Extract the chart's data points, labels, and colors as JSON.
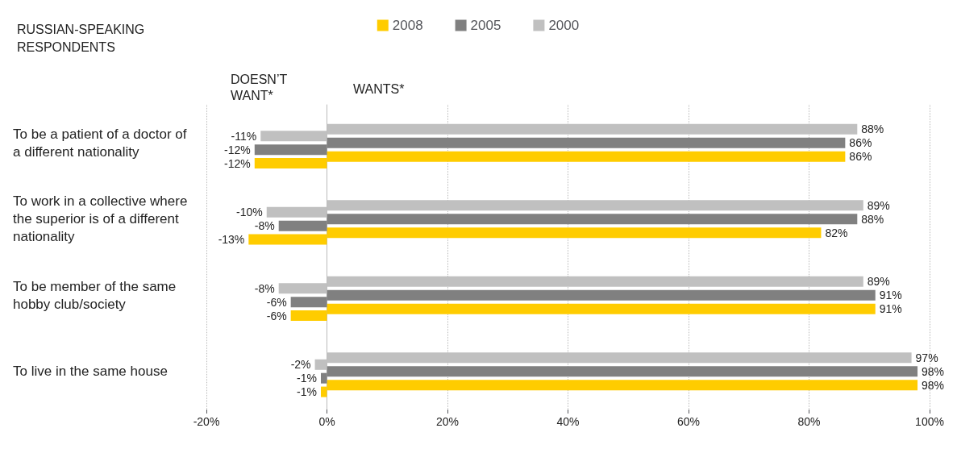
{
  "chart_data": {
    "type": "bar",
    "orientation": "horizontal",
    "title": "RUSSIAN-SPEAKING RESPONDENTS",
    "annotations": [
      "DOESN’T WANT*",
      "WANTS*"
    ],
    "categories": [
      "To be a patient of a doctor of a different nationality",
      "To work in a collective where the superior is of a different nationality",
      "To be member of the same hobby club/society",
      "To live in the same house"
    ],
    "series": [
      {
        "name": "2008",
        "color": "#ffcc00",
        "values": [
          86,
          82,
          91,
          98
        ],
        "value_labels": [
          "86%",
          "82%",
          "91%",
          "98%"
        ]
      },
      {
        "color": "#ffcc00",
        "values": [
          -12,
          -13,
          -6,
          -1
        ],
        "value_labels": [
          "-12%",
          "-13%",
          "-6%",
          "-1%"
        ]
      },
      {
        "name": "2005",
        "color": "#808080",
        "values": [
          86,
          88,
          91,
          98
        ],
        "value_labels": [
          "86%",
          "88%",
          "91%",
          "98%"
        ]
      },
      {
        "color": "#808080",
        "values": [
          -12,
          -8,
          -6,
          -1
        ],
        "value_labels": [
          "-12%",
          "-8%",
          "-6%",
          "-1%"
        ]
      },
      {
        "name": "2000",
        "color": "#c0c0c0",
        "values": [
          88,
          89,
          89,
          97
        ],
        "value_labels": [
          "88%",
          "89%",
          "89%",
          "97%"
        ]
      },
      {
        "color": "#c0c0c0",
        "values": [
          -11,
          -10,
          -8,
          -2
        ],
        "value_labels": [
          "-11%",
          "-10%",
          "-8%",
          "-2%"
        ]
      }
    ],
    "xlim": [
      -20,
      100
    ],
    "xticks": [
      {
        "value": -20,
        "label": "-20%"
      },
      {
        "value": 0,
        "label": "0%"
      },
      {
        "value": 20,
        "label": "20%"
      },
      {
        "value": 40,
        "label": "40%"
      },
      {
        "value": 60,
        "label": "60%"
      },
      {
        "value": 80,
        "label": "80%"
      },
      {
        "value": 100,
        "label": "100%"
      }
    ],
    "grid": "x",
    "legend": "top"
  }
}
